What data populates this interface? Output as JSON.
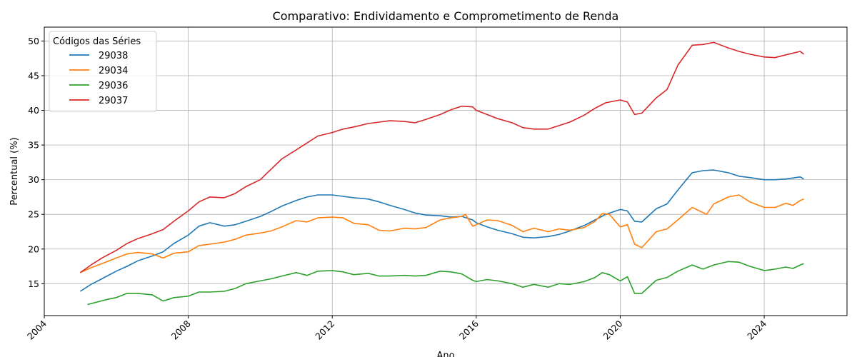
{
  "chart_data": {
    "type": "line",
    "title": "Comparativo: Endividamento e Comprometimento de Renda",
    "xlabel": "Ano",
    "ylabel": "Percentual (%)",
    "xlim": [
      2004,
      2026.3
    ],
    "ylim": [
      10.4,
      52
    ],
    "x_ticks": [
      "2004",
      "2008",
      "2012",
      "2016",
      "2020",
      "2024"
    ],
    "y_ticks": [
      "15",
      "20",
      "25",
      "30",
      "35",
      "40",
      "45",
      "50"
    ],
    "grid": true,
    "legend": {
      "title": "Códigos das Séries",
      "placement": "top-left"
    },
    "series": [
      {
        "name": "29038",
        "color": "#1f77b4",
        "points": [
          [
            2005.0,
            13.9
          ],
          [
            2005.3,
            14.9
          ],
          [
            2005.6,
            15.7
          ],
          [
            2006.0,
            16.8
          ],
          [
            2006.3,
            17.5
          ],
          [
            2006.6,
            18.3
          ],
          [
            2007.0,
            19.0
          ],
          [
            2007.3,
            19.6
          ],
          [
            2007.6,
            20.8
          ],
          [
            2008.0,
            22.0
          ],
          [
            2008.3,
            23.3
          ],
          [
            2008.6,
            23.8
          ],
          [
            2009.0,
            23.3
          ],
          [
            2009.3,
            23.5
          ],
          [
            2009.6,
            24.0
          ],
          [
            2010.0,
            24.7
          ],
          [
            2010.3,
            25.4
          ],
          [
            2010.6,
            26.2
          ],
          [
            2011.0,
            27.0
          ],
          [
            2011.3,
            27.5
          ],
          [
            2011.6,
            27.8
          ],
          [
            2012.0,
            27.8
          ],
          [
            2012.3,
            27.6
          ],
          [
            2012.6,
            27.4
          ],
          [
            2013.0,
            27.2
          ],
          [
            2013.3,
            26.8
          ],
          [
            2013.6,
            26.3
          ],
          [
            2014.0,
            25.7
          ],
          [
            2014.3,
            25.2
          ],
          [
            2014.6,
            24.9
          ],
          [
            2015.0,
            24.8
          ],
          [
            2015.3,
            24.6
          ],
          [
            2015.6,
            24.7
          ],
          [
            2015.9,
            24.2
          ],
          [
            2016.0,
            23.8
          ],
          [
            2016.3,
            23.2
          ],
          [
            2016.6,
            22.7
          ],
          [
            2017.0,
            22.2
          ],
          [
            2017.3,
            21.7
          ],
          [
            2017.6,
            21.6
          ],
          [
            2018.0,
            21.8
          ],
          [
            2018.3,
            22.1
          ],
          [
            2018.6,
            22.6
          ],
          [
            2019.0,
            23.4
          ],
          [
            2019.3,
            24.2
          ],
          [
            2019.6,
            25.0
          ],
          [
            2020.0,
            25.7
          ],
          [
            2020.2,
            25.5
          ],
          [
            2020.4,
            24.0
          ],
          [
            2020.6,
            23.9
          ],
          [
            2021.0,
            25.8
          ],
          [
            2021.3,
            26.5
          ],
          [
            2021.6,
            28.5
          ],
          [
            2022.0,
            31.0
          ],
          [
            2022.3,
            31.3
          ],
          [
            2022.6,
            31.4
          ],
          [
            2023.0,
            31.0
          ],
          [
            2023.3,
            30.5
          ],
          [
            2023.6,
            30.3
          ],
          [
            2024.0,
            30.0
          ],
          [
            2024.3,
            30.0
          ],
          [
            2024.6,
            30.1
          ],
          [
            2025.0,
            30.4
          ],
          [
            2025.1,
            30.1
          ]
        ]
      },
      {
        "name": "29034",
        "color": "#ff7f0e",
        "points": [
          [
            2005.0,
            16.6
          ],
          [
            2005.3,
            17.3
          ],
          [
            2005.6,
            17.9
          ],
          [
            2006.0,
            18.7
          ],
          [
            2006.3,
            19.3
          ],
          [
            2006.6,
            19.5
          ],
          [
            2007.0,
            19.3
          ],
          [
            2007.3,
            18.7
          ],
          [
            2007.6,
            19.4
          ],
          [
            2008.0,
            19.6
          ],
          [
            2008.3,
            20.5
          ],
          [
            2008.6,
            20.7
          ],
          [
            2009.0,
            21.0
          ],
          [
            2009.3,
            21.4
          ],
          [
            2009.6,
            22.0
          ],
          [
            2010.0,
            22.3
          ],
          [
            2010.3,
            22.6
          ],
          [
            2010.6,
            23.2
          ],
          [
            2011.0,
            24.1
          ],
          [
            2011.3,
            23.9
          ],
          [
            2011.6,
            24.5
          ],
          [
            2012.0,
            24.6
          ],
          [
            2012.3,
            24.5
          ],
          [
            2012.6,
            23.7
          ],
          [
            2013.0,
            23.5
          ],
          [
            2013.3,
            22.7
          ],
          [
            2013.6,
            22.6
          ],
          [
            2014.0,
            23.0
          ],
          [
            2014.3,
            22.9
          ],
          [
            2014.6,
            23.1
          ],
          [
            2015.0,
            24.2
          ],
          [
            2015.3,
            24.5
          ],
          [
            2015.6,
            24.7
          ],
          [
            2015.7,
            25.0
          ],
          [
            2015.9,
            23.3
          ],
          [
            2016.0,
            23.5
          ],
          [
            2016.3,
            24.2
          ],
          [
            2016.6,
            24.1
          ],
          [
            2017.0,
            23.4
          ],
          [
            2017.3,
            22.5
          ],
          [
            2017.6,
            23.0
          ],
          [
            2018.0,
            22.5
          ],
          [
            2018.3,
            22.9
          ],
          [
            2018.6,
            22.7
          ],
          [
            2019.0,
            23.1
          ],
          [
            2019.3,
            24.0
          ],
          [
            2019.5,
            25.1
          ],
          [
            2019.7,
            25.0
          ],
          [
            2020.0,
            23.2
          ],
          [
            2020.2,
            23.5
          ],
          [
            2020.4,
            20.7
          ],
          [
            2020.6,
            20.2
          ],
          [
            2021.0,
            22.5
          ],
          [
            2021.3,
            22.9
          ],
          [
            2021.6,
            24.2
          ],
          [
            2022.0,
            26.0
          ],
          [
            2022.2,
            25.5
          ],
          [
            2022.4,
            25.0
          ],
          [
            2022.6,
            26.5
          ],
          [
            2023.0,
            27.5
          ],
          [
            2023.3,
            27.8
          ],
          [
            2023.6,
            26.8
          ],
          [
            2024.0,
            26.0
          ],
          [
            2024.3,
            26.0
          ],
          [
            2024.6,
            26.6
          ],
          [
            2024.8,
            26.3
          ],
          [
            2025.0,
            27.0
          ],
          [
            2025.1,
            27.2
          ]
        ]
      },
      {
        "name": "29036",
        "color": "#2ca02c",
        "points": [
          [
            2005.2,
            12.0
          ],
          [
            2005.5,
            12.4
          ],
          [
            2005.8,
            12.8
          ],
          [
            2006.0,
            13.0
          ],
          [
            2006.3,
            13.6
          ],
          [
            2006.6,
            13.6
          ],
          [
            2007.0,
            13.4
          ],
          [
            2007.3,
            12.5
          ],
          [
            2007.6,
            13.0
          ],
          [
            2008.0,
            13.2
          ],
          [
            2008.3,
            13.8
          ],
          [
            2008.6,
            13.8
          ],
          [
            2009.0,
            13.9
          ],
          [
            2009.3,
            14.3
          ],
          [
            2009.6,
            15.0
          ],
          [
            2010.0,
            15.4
          ],
          [
            2010.3,
            15.7
          ],
          [
            2010.6,
            16.1
          ],
          [
            2011.0,
            16.6
          ],
          [
            2011.3,
            16.2
          ],
          [
            2011.6,
            16.8
          ],
          [
            2012.0,
            16.9
          ],
          [
            2012.3,
            16.7
          ],
          [
            2012.6,
            16.3
          ],
          [
            2013.0,
            16.5
          ],
          [
            2013.3,
            16.1
          ],
          [
            2013.6,
            16.1
          ],
          [
            2014.0,
            16.2
          ],
          [
            2014.3,
            16.1
          ],
          [
            2014.6,
            16.2
          ],
          [
            2015.0,
            16.8
          ],
          [
            2015.3,
            16.7
          ],
          [
            2015.6,
            16.4
          ],
          [
            2015.9,
            15.5
          ],
          [
            2016.0,
            15.3
          ],
          [
            2016.3,
            15.6
          ],
          [
            2016.6,
            15.4
          ],
          [
            2017.0,
            15.0
          ],
          [
            2017.3,
            14.5
          ],
          [
            2017.6,
            14.9
          ],
          [
            2018.0,
            14.5
          ],
          [
            2018.3,
            15.0
          ],
          [
            2018.6,
            14.9
          ],
          [
            2019.0,
            15.3
          ],
          [
            2019.3,
            15.9
          ],
          [
            2019.5,
            16.6
          ],
          [
            2019.7,
            16.3
          ],
          [
            2020.0,
            15.4
          ],
          [
            2020.2,
            16.0
          ],
          [
            2020.4,
            13.6
          ],
          [
            2020.6,
            13.6
          ],
          [
            2021.0,
            15.5
          ],
          [
            2021.3,
            15.9
          ],
          [
            2021.6,
            16.8
          ],
          [
            2022.0,
            17.7
          ],
          [
            2022.3,
            17.1
          ],
          [
            2022.6,
            17.7
          ],
          [
            2023.0,
            18.2
          ],
          [
            2023.3,
            18.1
          ],
          [
            2023.6,
            17.5
          ],
          [
            2024.0,
            16.9
          ],
          [
            2024.3,
            17.1
          ],
          [
            2024.6,
            17.4
          ],
          [
            2024.8,
            17.2
          ],
          [
            2025.0,
            17.7
          ],
          [
            2025.1,
            17.9
          ]
        ]
      },
      {
        "name": "29037",
        "color": "#d62728",
        "points": [
          [
            2005.0,
            16.6
          ],
          [
            2005.3,
            17.7
          ],
          [
            2005.6,
            18.7
          ],
          [
            2006.0,
            19.8
          ],
          [
            2006.3,
            20.8
          ],
          [
            2006.6,
            21.5
          ],
          [
            2007.0,
            22.2
          ],
          [
            2007.3,
            22.8
          ],
          [
            2007.6,
            24.0
          ],
          [
            2008.0,
            25.5
          ],
          [
            2008.3,
            26.8
          ],
          [
            2008.6,
            27.5
          ],
          [
            2009.0,
            27.4
          ],
          [
            2009.3,
            28.0
          ],
          [
            2009.6,
            29.0
          ],
          [
            2010.0,
            30.0
          ],
          [
            2010.3,
            31.5
          ],
          [
            2010.6,
            33.0
          ],
          [
            2011.0,
            34.3
          ],
          [
            2011.3,
            35.3
          ],
          [
            2011.6,
            36.3
          ],
          [
            2012.0,
            36.8
          ],
          [
            2012.3,
            37.3
          ],
          [
            2012.6,
            37.6
          ],
          [
            2013.0,
            38.1
          ],
          [
            2013.3,
            38.3
          ],
          [
            2013.6,
            38.5
          ],
          [
            2014.0,
            38.4
          ],
          [
            2014.3,
            38.2
          ],
          [
            2014.6,
            38.7
          ],
          [
            2015.0,
            39.4
          ],
          [
            2015.3,
            40.1
          ],
          [
            2015.6,
            40.6
          ],
          [
            2015.9,
            40.5
          ],
          [
            2016.0,
            40.0
          ],
          [
            2016.3,
            39.4
          ],
          [
            2016.6,
            38.8
          ],
          [
            2017.0,
            38.2
          ],
          [
            2017.3,
            37.5
          ],
          [
            2017.6,
            37.3
          ],
          [
            2018.0,
            37.3
          ],
          [
            2018.3,
            37.8
          ],
          [
            2018.6,
            38.3
          ],
          [
            2019.0,
            39.3
          ],
          [
            2019.3,
            40.3
          ],
          [
            2019.6,
            41.1
          ],
          [
            2020.0,
            41.5
          ],
          [
            2020.2,
            41.2
          ],
          [
            2020.4,
            39.4
          ],
          [
            2020.6,
            39.6
          ],
          [
            2021.0,
            41.8
          ],
          [
            2021.3,
            43.0
          ],
          [
            2021.6,
            46.5
          ],
          [
            2022.0,
            49.4
          ],
          [
            2022.3,
            49.5
          ],
          [
            2022.6,
            49.8
          ],
          [
            2023.0,
            49.0
          ],
          [
            2023.3,
            48.5
          ],
          [
            2023.6,
            48.1
          ],
          [
            2024.0,
            47.7
          ],
          [
            2024.3,
            47.6
          ],
          [
            2024.6,
            48.0
          ],
          [
            2025.0,
            48.5
          ],
          [
            2025.1,
            48.1
          ]
        ]
      }
    ]
  }
}
